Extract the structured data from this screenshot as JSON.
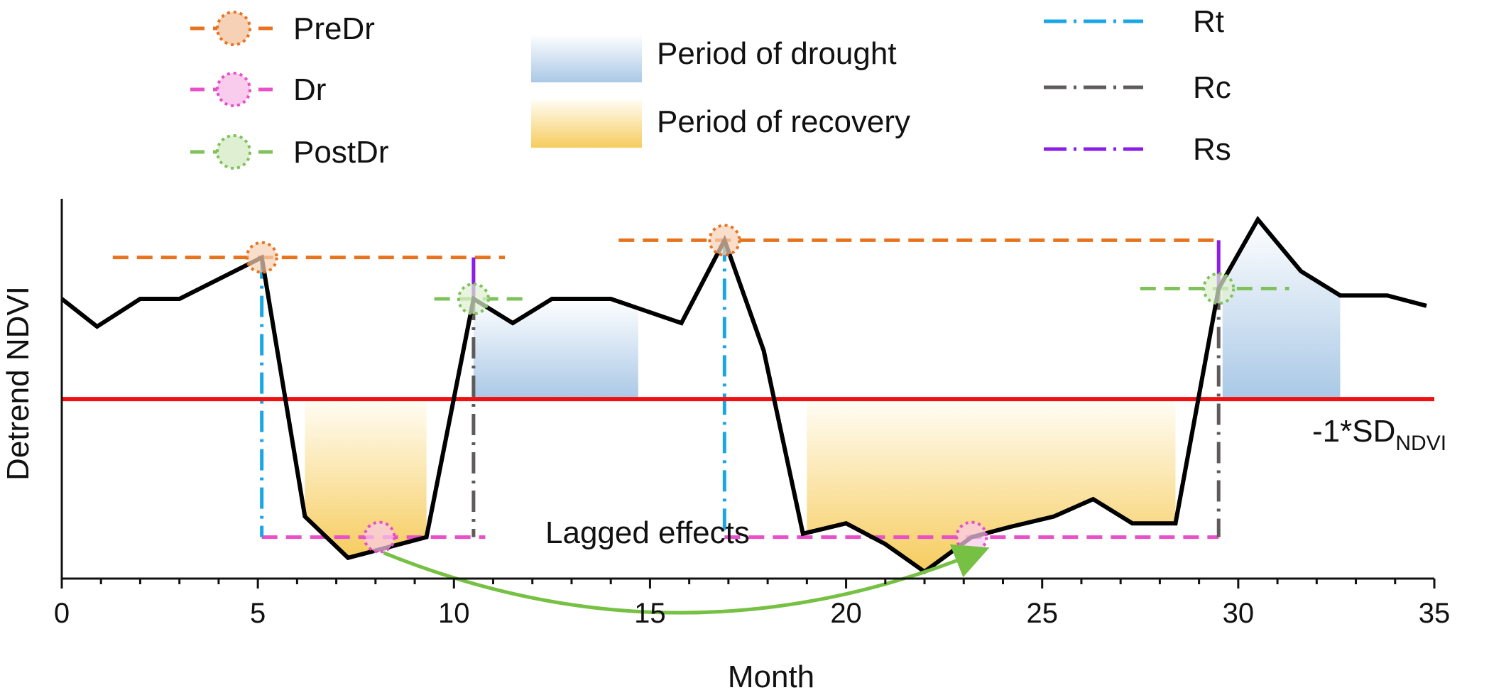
{
  "chart_data": {
    "type": "line",
    "title": "",
    "xlabel": "Month",
    "ylabel": "Detrend NDVI",
    "xlim": [
      0,
      35
    ],
    "ylim": [
      -3.5,
      2.0
    ],
    "x_ticks": [
      0,
      5,
      10,
      15,
      20,
      25,
      30,
      35
    ],
    "x_tick_labels": [
      "0",
      "5",
      "10",
      "15",
      "20",
      "25",
      "30",
      "35"
    ],
    "series": [
      {
        "name": "Detrend NDVI",
        "color": "#000000",
        "x": [
          0,
          0.9,
          2,
          3,
          5.1,
          6.2,
          7.3,
          9.3,
          10.5,
          11.5,
          12.5,
          14,
          15.8,
          16.9,
          17.9,
          18.9,
          20,
          21,
          22,
          23.2,
          24.2,
          25.3,
          26.3,
          27.3,
          28.4,
          29.5,
          30.5,
          31.6,
          32.6,
          33.8,
          34.8
        ],
        "y": [
          0.55,
          0.15,
          0.55,
          0.55,
          1.15,
          -2.6,
          -3.2,
          -2.9,
          0.55,
          0.2,
          0.55,
          0.55,
          0.2,
          1.4,
          -0.2,
          -2.85,
          -2.7,
          -3.0,
          -3.4,
          -2.9,
          -2.75,
          -2.6,
          -2.35,
          -2.7,
          -2.7,
          0.7,
          1.7,
          0.95,
          0.6,
          0.6,
          0.45
        ]
      }
    ],
    "threshold": {
      "label": "-1*SD",
      "label_sub": "NDVI",
      "y": -0.9,
      "color": "#ee1111"
    },
    "legend": [
      {
        "label": "PreDr",
        "style": "dashed-circle",
        "color": "#e8731f"
      },
      {
        "label": "Dr",
        "style": "dashed-circle",
        "color": "#e84fc8"
      },
      {
        "label": "PostDr",
        "style": "dashed-circle",
        "color": "#7fc15a"
      },
      {
        "label": "Period of drought",
        "style": "gradient-box",
        "color": "#9fc1e3"
      },
      {
        "label": "Period of recovery",
        "style": "gradient-box",
        "color": "#f6cc63"
      },
      {
        "label": "Rt",
        "style": "dash-dot",
        "color": "#1aa6e6"
      },
      {
        "label": "Rc",
        "style": "dash-dot",
        "color": "#5f5b5b"
      },
      {
        "label": "Rs",
        "style": "dash-dot",
        "color": "#8a1ee6"
      }
    ],
    "events": [
      {
        "predr": {
          "x": 5.1,
          "y": 1.15
        },
        "dr": {
          "x": 8.1,
          "y": -2.9
        },
        "postdr": {
          "x": 10.5,
          "y": 0.55
        },
        "recovery_period": [
          6.2,
          9.3
        ],
        "post_period": [
          10.5,
          14.7
        ]
      },
      {
        "predr": {
          "x": 16.9,
          "y": 1.4
        },
        "dr": {
          "x": 23.2,
          "y": -2.9
        },
        "postdr": {
          "x": 29.5,
          "y": 0.7
        },
        "recovery_period": [
          19.0,
          28.4
        ],
        "post_period": [
          29.6,
          32.6
        ]
      }
    ],
    "annotations": [
      {
        "text": "Lagged effects",
        "from": {
          "x": 8.1,
          "y": -2.9
        },
        "to": {
          "x": 23.2,
          "y": -2.9
        },
        "color": "#76c043"
      }
    ]
  }
}
